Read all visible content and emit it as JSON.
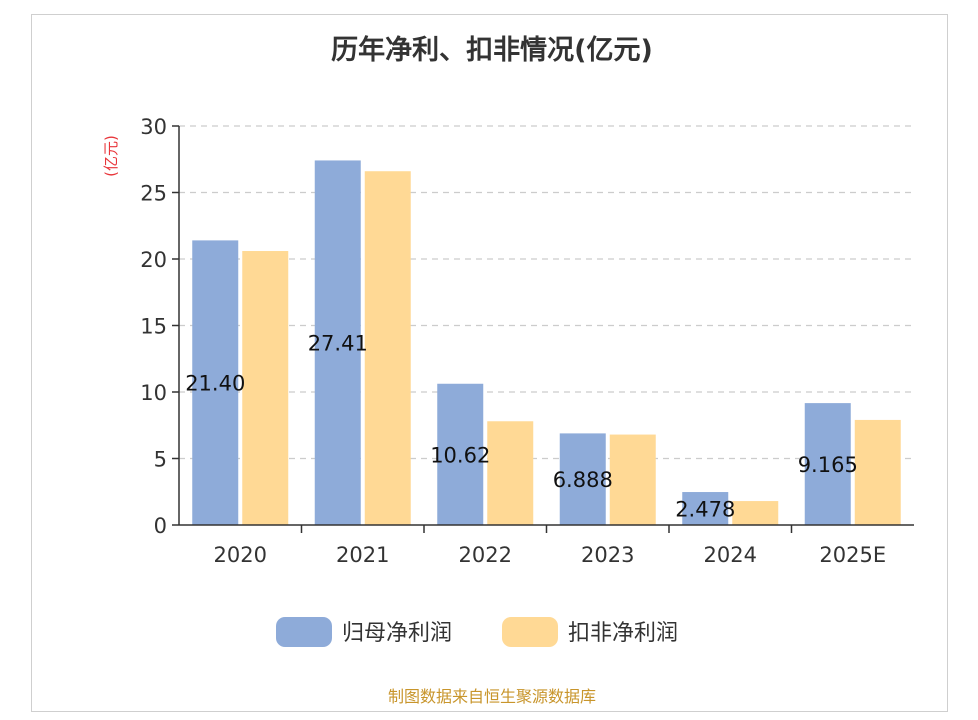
{
  "chart_data": {
    "type": "bar",
    "title": "历年净利、扣非情况(亿元)",
    "ylabel": "(亿元)",
    "xlabel": "",
    "ylim": [
      0,
      30
    ],
    "yticks": [
      0,
      5,
      10,
      15,
      20,
      25,
      30
    ],
    "categories": [
      "2020",
      "2021",
      "2022",
      "2023",
      "2024",
      "2025E"
    ],
    "series": [
      {
        "name": "归母净利润",
        "color": "#8eabd9",
        "values": [
          21.4,
          27.41,
          10.62,
          6.888,
          2.478,
          9.165
        ],
        "labels": [
          "21.40",
          "27.41",
          "10.62",
          "6.888",
          "2.478",
          "9.165"
        ]
      },
      {
        "name": "扣非净利润",
        "color": "#ffd995",
        "values": [
          20.6,
          26.6,
          7.8,
          6.8,
          1.8,
          7.9
        ]
      }
    ],
    "grid": true,
    "legend_position": "bottom"
  },
  "footer": {
    "source": "制图数据来自恒生聚源数据库",
    "source_color": "#c8952b"
  },
  "colors": {
    "ylabel": "#e8353a",
    "axis": "#333333",
    "grid": "#cccccc"
  }
}
